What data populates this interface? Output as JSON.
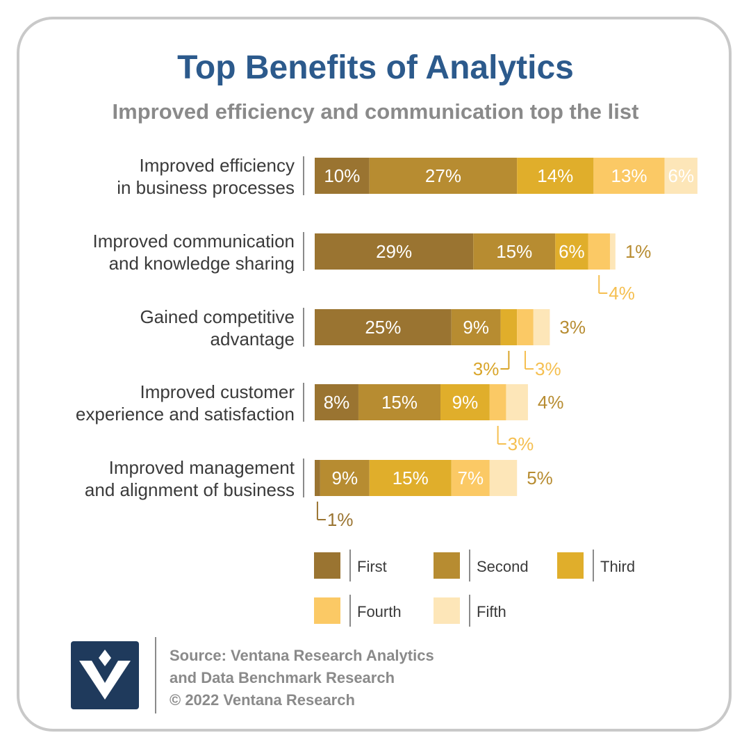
{
  "header": {
    "title": "Top Benefits of Analytics",
    "subtitle": "Improved efficiency and communication top the list"
  },
  "chart_data": {
    "type": "bar",
    "orientation": "horizontal",
    "stacked": true,
    "categories": [
      [
        "Improved efficiency",
        "in business processes"
      ],
      [
        "Improved communication",
        "and knowledge sharing"
      ],
      [
        "Gained competitive",
        "advantage"
      ],
      [
        "Improved customer",
        "experience and satisfaction"
      ],
      [
        "Improved management",
        "and alignment of business"
      ]
    ],
    "series": [
      {
        "name": "First",
        "color": "#9a7431",
        "values": [
          10,
          29,
          25,
          8,
          1
        ]
      },
      {
        "name": "Second",
        "color": "#b78c31",
        "values": [
          27,
          15,
          9,
          15,
          9
        ]
      },
      {
        "name": "Third",
        "color": "#e0ae2b",
        "values": [
          14,
          6,
          3,
          9,
          15
        ]
      },
      {
        "name": "Fourth",
        "color": "#fbc965",
        "values": [
          13,
          4,
          3,
          3,
          7
        ]
      },
      {
        "name": "Fifth",
        "color": "#fde6b8",
        "values": [
          6,
          1,
          3,
          4,
          5
        ]
      }
    ],
    "value_suffix": "%",
    "legend": "bottom",
    "grid": false
  },
  "source": {
    "line1": "Source: Ventana Research Analytics",
    "line2": "and Data Benchmark Research",
    "line3": "© 2022 Ventana Research"
  },
  "icons": {
    "logo": "ventana-logo-icon"
  }
}
